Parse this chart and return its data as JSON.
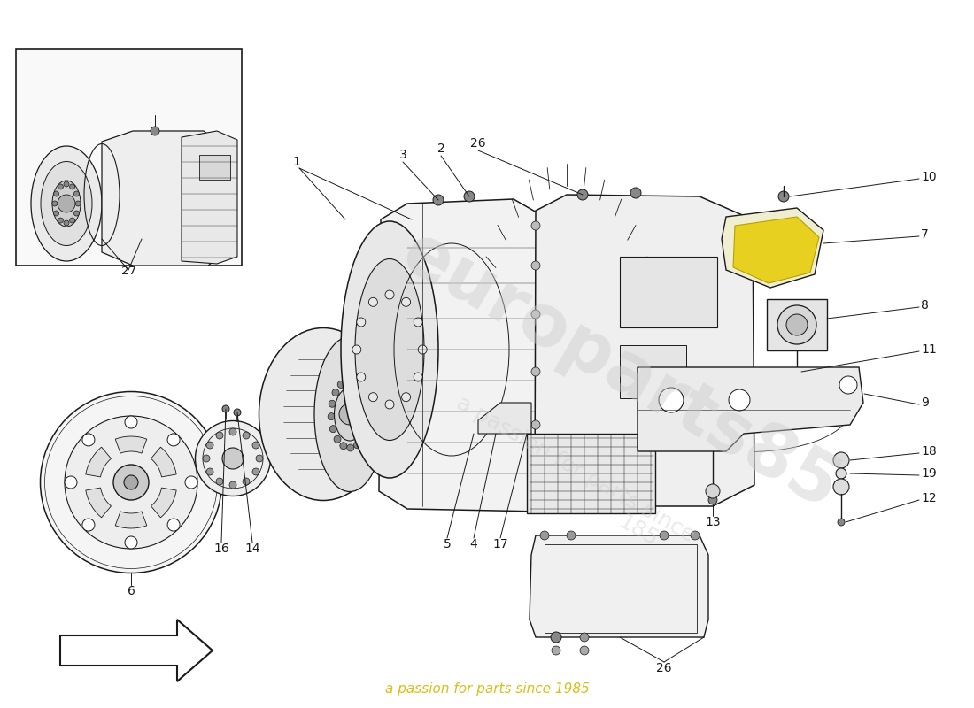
{
  "background_color": "#ffffff",
  "line_color": "#1a1a1a",
  "watermark_text1": "europarts85",
  "watermark_text2": "a passion for parts since 1985",
  "watermark_yellow": "#d4b800"
}
